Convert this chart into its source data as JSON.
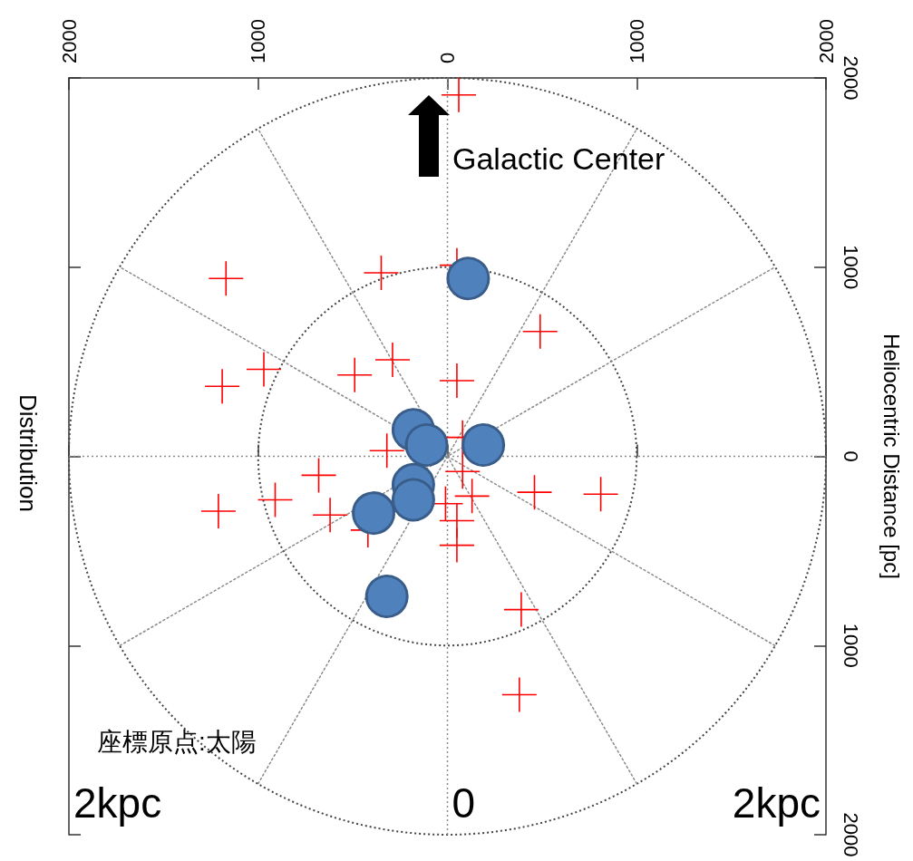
{
  "chart_data": {
    "type": "scatter",
    "title": "Distribution",
    "ylabel": "Heliocentric Distance [pc]",
    "annotations": [
      "Galactic Center",
      "座標原点:太陽",
      "2kpc",
      "0",
      "2kpc"
    ],
    "xlim": [
      -2000,
      2000
    ],
    "xticks": [
      {
        "value": -2000,
        "label": "2000"
      },
      {
        "value": -1000,
        "label": "1000"
      },
      0,
      1000,
      2000
    ],
    "ylim": [
      -2000,
      2000
    ],
    "yticks": [
      {
        "value": -2000,
        "label": "2000"
      },
      {
        "value": -1000,
        "label": "1000"
      },
      0,
      1000,
      2000
    ],
    "grid": true,
    "series": [
      {
        "color": "#ff0000",
        "marker": "cross",
        "x": [
          60,
          -1170,
          -350,
          50,
          490,
          -970,
          -1190,
          -490,
          -290,
          50,
          -320,
          80,
          80,
          130,
          -10,
          50,
          50,
          460,
          810,
          -680,
          -910,
          -1210,
          -620,
          -420,
          390,
          380
        ],
        "values": [
          1910,
          940,
          970,
          1010,
          660,
          460,
          370,
          430,
          510,
          400,
          30,
          100,
          -80,
          -210,
          -250,
          -340,
          -470,
          -190,
          -200,
          -100,
          -230,
          -290,
          -310,
          -390,
          -810,
          -1260
        ]
      },
      {
        "color": "#4f81bd",
        "marker": "circle",
        "x": [
          110,
          190,
          -180,
          -110,
          -180,
          -180,
          -390,
          -320
        ],
        "values": [
          940,
          60,
          140,
          60,
          -150,
          -230,
          -300,
          -740
        ]
      },
      {
        "type": "line",
        "color": "#8a8a8a",
        "line_style": "dotted",
        "marker": "none",
        "x": [
          -1730,
          1730
        ],
        "values": [
          -1000,
          1000
        ]
      },
      {
        "type": "line",
        "color": "#8a8a8a",
        "line_style": "dotted",
        "marker": "none",
        "x": [
          -1000,
          1000
        ],
        "values": [
          -1730,
          1730
        ]
      },
      {
        "type": "line",
        "color": "#8a8a8a",
        "line_style": "dotted",
        "marker": "none",
        "x": [
          1000,
          -1000
        ],
        "values": [
          -1730,
          1730
        ]
      },
      {
        "type": "line",
        "color": "#8a8a8a",
        "line_style": "dotted",
        "marker": "none",
        "x": [
          1730,
          -1730
        ],
        "values": [
          -1000,
          1000
        ]
      }
    ]
  }
}
